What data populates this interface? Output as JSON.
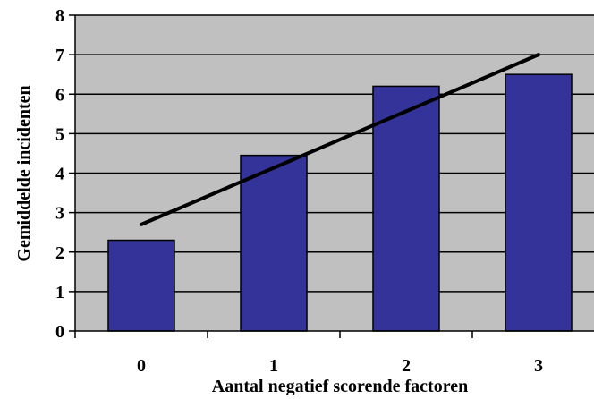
{
  "chart_data": {
    "type": "bar",
    "title": "",
    "xlabel": "Aantal negatief scorende factoren",
    "ylabel": "Gemiddelde incidenten",
    "categories": [
      "0",
      "1",
      "2",
      "3"
    ],
    "values": [
      2.3,
      4.45,
      6.2,
      6.5
    ],
    "ylim": [
      0,
      8
    ],
    "yticks": [
      "0",
      "1",
      "2",
      "3",
      "4",
      "5",
      "6",
      "7",
      "8"
    ],
    "grid": true,
    "legend": "none",
    "trendline": {
      "start": 2.7,
      "end": 7.0
    },
    "colors": {
      "plot_background": "#C0C0C0",
      "bar_fill": "#333399",
      "bar_stroke": "#000000",
      "gridline": "#000000",
      "trendline": "#000000"
    }
  }
}
